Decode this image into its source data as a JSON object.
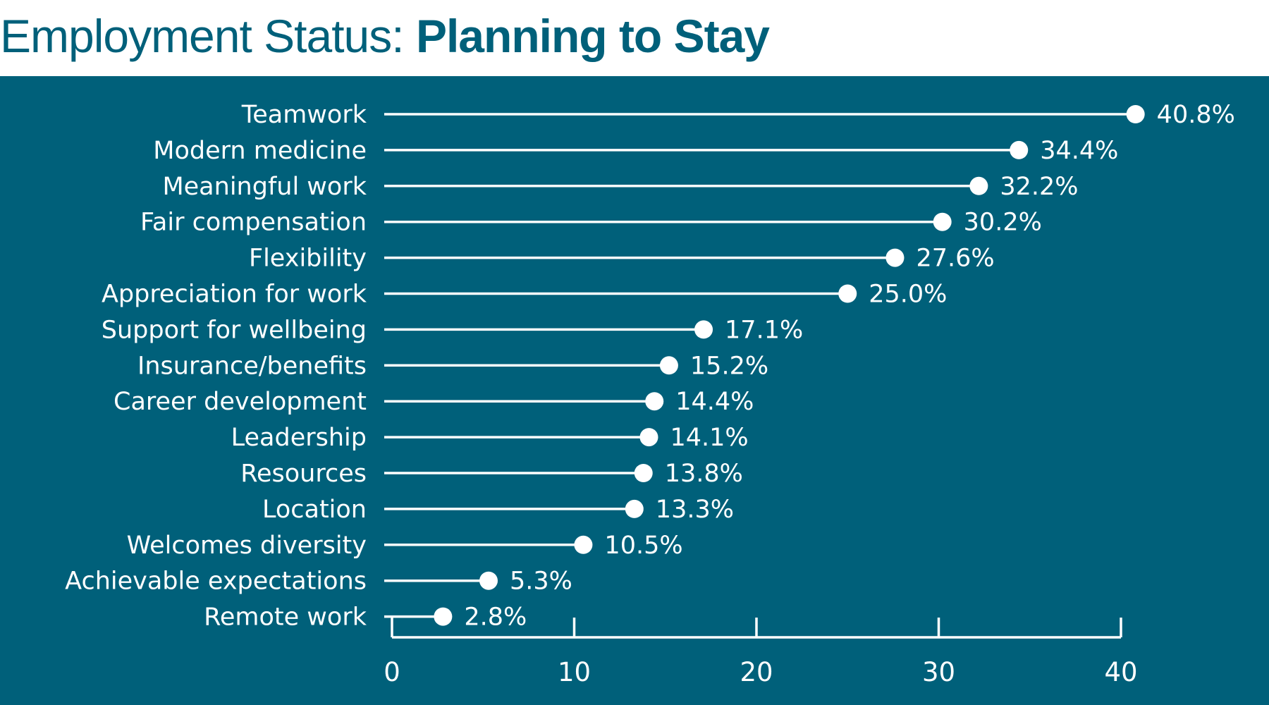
{
  "title": {
    "prefix": "Employment Status:",
    "emphasis": "Planning to Stay"
  },
  "colors": {
    "panel_background": "#00607a",
    "title_text": "#00607a",
    "marks": "#ffffff"
  },
  "chart_data": {
    "type": "lollipop",
    "orientation": "horizontal",
    "title": "Employment Status: Planning to Stay",
    "xlabel": "",
    "ylabel": "",
    "xlim": [
      0,
      40
    ],
    "xticks": [
      0,
      10,
      20,
      30,
      40
    ],
    "grid": false,
    "legend": "none",
    "categories": [
      "Teamwork",
      "Modern medicine",
      "Meaningful work",
      "Fair compensation",
      "Flexibility",
      "Appreciation for work",
      "Support for wellbeing",
      "Insurance/benefits",
      "Career development",
      "Leadership",
      "Resources",
      "Location",
      "Welcomes diversity",
      "Achievable expectations",
      "Remote work"
    ],
    "values": [
      40.8,
      34.4,
      32.2,
      30.2,
      27.6,
      25.0,
      17.1,
      15.2,
      14.4,
      14.1,
      13.8,
      13.3,
      10.5,
      5.3,
      2.8
    ],
    "value_labels": [
      "40.8%",
      "34.4%",
      "32.2%",
      "30.2%",
      "27.6%",
      "25.0%",
      "17.1%",
      "15.2%",
      "14.4%",
      "14.1%",
      "13.8%",
      "13.3%",
      "10.5%",
      "5.3%",
      "2.8%"
    ]
  }
}
